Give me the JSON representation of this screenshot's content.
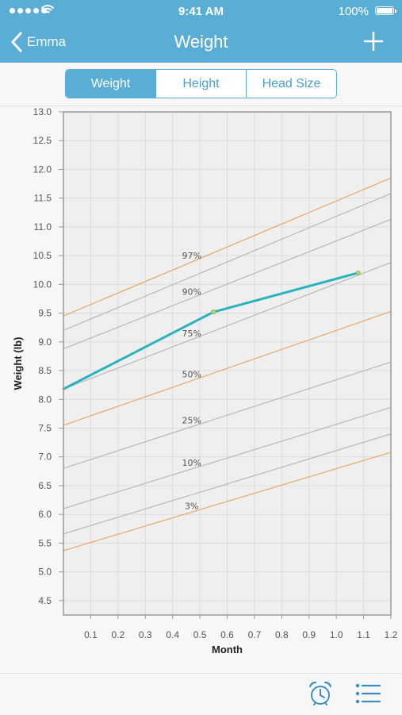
{
  "status_bar": {
    "time": "9:41 AM",
    "battery": "100%"
  },
  "nav": {
    "back_label": "Emma",
    "title": "Weight"
  },
  "tabs": [
    {
      "label": "Weight",
      "active": true
    },
    {
      "label": "Height",
      "active": false
    },
    {
      "label": "Head Size",
      "active": false
    }
  ],
  "colors": {
    "accent": "#5aaed6",
    "growth_line": "#2bb3bd",
    "orange_percentile": "#e6a867",
    "gray_percentile": "#b8b8b8"
  },
  "icons": {
    "back": "chevron-left-icon",
    "add": "plus-icon",
    "alarm": "alarm-clock-icon",
    "list": "list-icon"
  },
  "chart_data": {
    "type": "line",
    "xlabel": "Month",
    "ylabel": "Weight (lb)",
    "xlim": [
      0.0,
      1.2
    ],
    "ylim": [
      4.25,
      13.0
    ],
    "x_ticks": [
      "0.1",
      "0.2",
      "0.3",
      "0.4",
      "0.5",
      "0.6",
      "0.7",
      "0.8",
      "0.9",
      "1.0",
      "1.1",
      "1.2"
    ],
    "y_ticks": [
      "13.0",
      "12.5",
      "12.0",
      "11.5",
      "11.0",
      "10.5",
      "10.0",
      "9.5",
      "9.0",
      "8.5",
      "8.0",
      "7.5",
      "7.0",
      "6.5",
      "6.0",
      "5.5",
      "5.0",
      "4.5"
    ],
    "grid": true,
    "percentiles": [
      {
        "label": "97%",
        "start": 9.45,
        "end": 11.85,
        "color": "orange"
      },
      {
        "label": "",
        "start": 9.2,
        "end": 11.58,
        "color": "gray"
      },
      {
        "label": "90%",
        "start": 8.88,
        "end": 11.13,
        "color": "gray"
      },
      {
        "label": "75%",
        "start": 8.18,
        "end": 10.38,
        "color": "gray"
      },
      {
        "label": "50%",
        "start": 7.55,
        "end": 9.53,
        "color": "orange"
      },
      {
        "label": "25%",
        "start": 6.8,
        "end": 8.65,
        "color": "gray"
      },
      {
        "label": "10%",
        "start": 6.1,
        "end": 7.86,
        "color": "gray"
      },
      {
        "label": "",
        "start": 5.66,
        "end": 7.4,
        "color": "gray"
      },
      {
        "label": "3%",
        "start": 5.37,
        "end": 7.08,
        "color": "orange"
      }
    ],
    "series": [
      {
        "values": [
          {
            "x": 0.0,
            "y": 8.18
          },
          {
            "x": 0.55,
            "y": 9.52
          },
          {
            "x": 1.08,
            "y": 10.2
          }
        ]
      }
    ]
  }
}
